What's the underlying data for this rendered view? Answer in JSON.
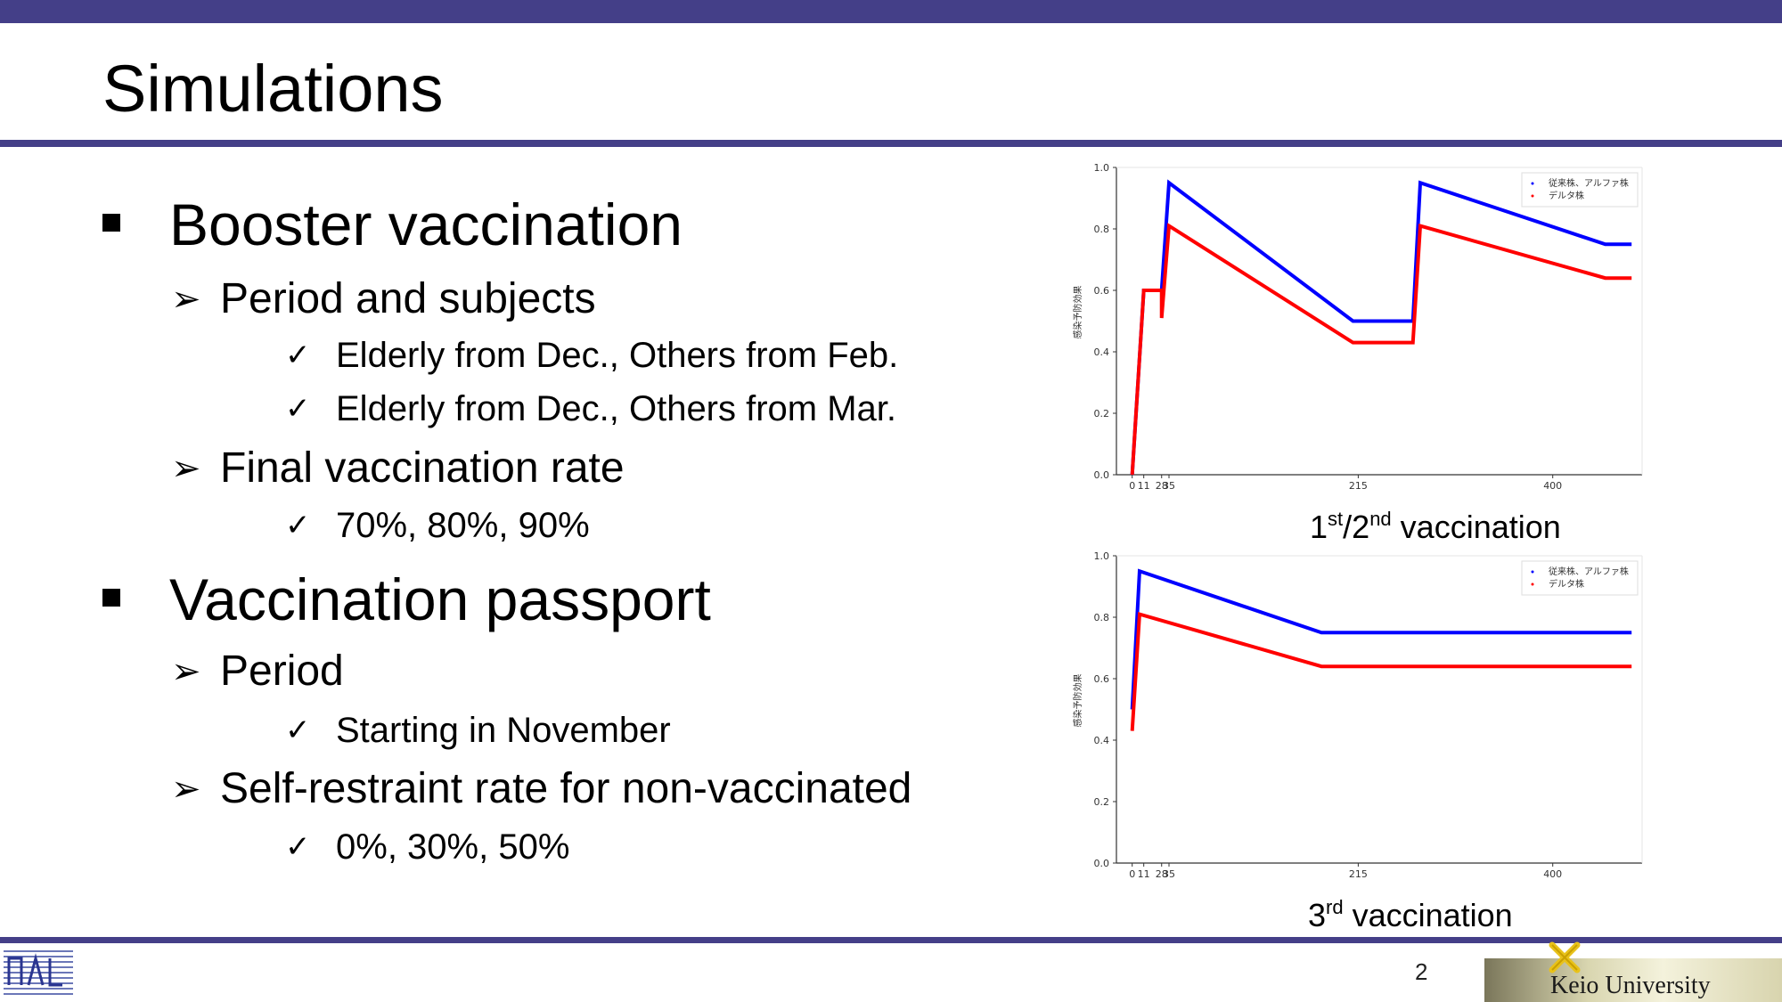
{
  "slide": {
    "title": "Simulations",
    "page_number": "2",
    "university": "Keio University"
  },
  "sections": [
    {
      "heading": "Booster vaccination",
      "items": [
        {
          "label": "Period and subjects",
          "subitems": [
            "Elderly from Dec., Others from Feb.",
            "Elderly from Dec., Others from Mar."
          ]
        },
        {
          "label": "Final vaccination rate",
          "subitems": [
            "70%, 80%, 90%"
          ]
        }
      ]
    },
    {
      "heading": "Vaccination passport",
      "items": [
        {
          "label": "Period",
          "subitems": [
            "Starting in November"
          ]
        },
        {
          "label": "Self-restraint rate for non-vaccinated",
          "subitems": [
            "0%, 30%, 50%"
          ]
        }
      ]
    }
  ],
  "captions": {
    "chart1": {
      "n1": "1",
      "s1": "st",
      "mid": "/2",
      "s2": "nd",
      "rest": " vaccination"
    },
    "chart2": {
      "n1": "3",
      "s1": "rd",
      "rest": " vaccination"
    }
  },
  "chart_data": [
    {
      "type": "line",
      "ylabel": "感染予防効果",
      "ylim": [
        0,
        1.0
      ],
      "xlim": [
        -15,
        485
      ],
      "yticks": [
        "0.0",
        "0.2",
        "0.4",
        "0.6",
        "0.8",
        "1.0"
      ],
      "xticks": [
        "0",
        "11",
        "28",
        "35",
        "215",
        "400"
      ],
      "grid": false,
      "legend_position": "top-right",
      "series": [
        {
          "name": "従来株、アルファ株",
          "color": "#0000ff",
          "x": [
            0,
            11,
            28,
            28,
            35,
            210,
            267,
            274,
            450,
            475
          ],
          "y": [
            0.0,
            0.6,
            0.6,
            0.6,
            0.95,
            0.5,
            0.5,
            0.95,
            0.75,
            0.75
          ]
        },
        {
          "name": "デルタ株",
          "color": "#ff0000",
          "x": [
            0,
            11,
            28,
            28,
            35,
            210,
            267,
            274,
            450,
            475
          ],
          "y": [
            0.0,
            0.6,
            0.6,
            0.51,
            0.81,
            0.43,
            0.43,
            0.81,
            0.64,
            0.64
          ]
        }
      ]
    },
    {
      "type": "line",
      "ylabel": "感染予防効果",
      "ylim": [
        0,
        1.0
      ],
      "xlim": [
        -15,
        485
      ],
      "yticks": [
        "0.0",
        "0.2",
        "0.4",
        "0.6",
        "0.8",
        "1.0"
      ],
      "xticks": [
        "0",
        "11",
        "28",
        "35",
        "215",
        "400"
      ],
      "grid": false,
      "legend_position": "top-right",
      "series": [
        {
          "name": "従来株、アルファ株",
          "color": "#0000ff",
          "x": [
            0,
            7,
            180,
            475
          ],
          "y": [
            0.5,
            0.95,
            0.75,
            0.75
          ]
        },
        {
          "name": "デルタ株",
          "color": "#ff0000",
          "x": [
            0,
            7,
            180,
            475
          ],
          "y": [
            0.43,
            0.81,
            0.64,
            0.64
          ]
        }
      ]
    }
  ]
}
